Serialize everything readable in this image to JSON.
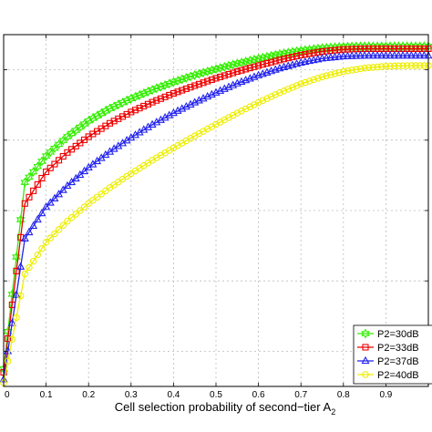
{
  "chart_data": {
    "type": "line",
    "xlabel": "Cell selection probability of second−tier A",
    "xlabel_subscript": "2",
    "ylabel": "",
    "title": "",
    "xlim": [
      0,
      1
    ],
    "ylim": [
      0,
      1
    ],
    "grid": true,
    "legend_position": "bottom-right",
    "x_ticks": [
      0,
      0.1,
      0.2,
      0.3,
      0.4,
      0.5,
      0.6,
      0.7,
      0.8,
      0.9
    ],
    "x_tick_labels": [
      "0",
      "0.1",
      "0.2",
      "0.3",
      "0.4",
      "0.5",
      "0.6",
      "0.7",
      "0.8",
      "0.9"
    ],
    "y_gridlines": [
      0.1,
      0.3,
      0.5,
      0.7,
      0.9
    ],
    "x": [
      0,
      0.05,
      0.1,
      0.15,
      0.2,
      0.25,
      0.3,
      0.35,
      0.4,
      0.45,
      0.5,
      0.55,
      0.6,
      0.65,
      0.7,
      0.75,
      0.8,
      0.85,
      0.9,
      0.95,
      1.0
    ],
    "series": [
      {
        "name": "P2=30dB",
        "color": "#33ee00",
        "marker": "hexagram",
        "values": [
          0.05,
          0.58,
          0.655,
          0.71,
          0.755,
          0.79,
          0.818,
          0.843,
          0.865,
          0.885,
          0.902,
          0.918,
          0.932,
          0.945,
          0.955,
          0.962,
          0.966,
          0.967,
          0.967,
          0.967,
          0.967
        ]
      },
      {
        "name": "P2=33dB",
        "color": "#ee0000",
        "marker": "square",
        "values": [
          0.04,
          0.52,
          0.61,
          0.665,
          0.71,
          0.748,
          0.78,
          0.808,
          0.833,
          0.855,
          0.876,
          0.895,
          0.912,
          0.928,
          0.942,
          0.952,
          0.958,
          0.96,
          0.96,
          0.96,
          0.96
        ]
      },
      {
        "name": "P2=37dB",
        "color": "#2222ee",
        "marker": "triangle",
        "values": [
          0.02,
          0.42,
          0.51,
          0.57,
          0.622,
          0.667,
          0.707,
          0.744,
          0.777,
          0.807,
          0.835,
          0.861,
          0.884,
          0.904,
          0.92,
          0.932,
          0.938,
          0.94,
          0.94,
          0.94,
          0.94
        ]
      },
      {
        "name": "P2=40dB",
        "color": "#eeee00",
        "marker": "circle",
        "values": [
          0.01,
          0.32,
          0.41,
          0.47,
          0.52,
          0.565,
          0.605,
          0.643,
          0.678,
          0.712,
          0.745,
          0.777,
          0.807,
          0.835,
          0.86,
          0.88,
          0.895,
          0.905,
          0.91,
          0.912,
          0.912
        ]
      }
    ]
  }
}
